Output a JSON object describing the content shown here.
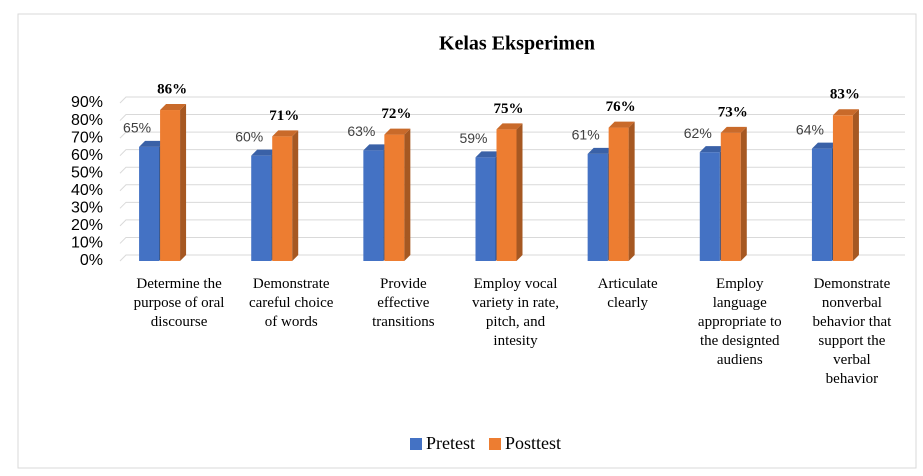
{
  "chart_data": {
    "type": "bar3d",
    "title": "Kelas Eksperimen",
    "categories": [
      "Determine the purpose of oral discourse",
      "Demonstrate careful choice of words",
      "Provide effective transitions",
      "Employ vocal variety in rate, pitch, and intesity",
      "Articulate clearly",
      "Employ language appropriate to the designted audiens",
      "Demonstrate nonverbal behavior that support the verbal behavior"
    ],
    "series": [
      {
        "name": "Pretest",
        "color": "#4472c4",
        "values": [
          65,
          60,
          63,
          59,
          61,
          62,
          64
        ],
        "value_labels": [
          "65%",
          "60%",
          "63%",
          "59%",
          "61%",
          "62%",
          "64%"
        ]
      },
      {
        "name": "Posttest",
        "color": "#ed7d31",
        "values": [
          86,
          71,
          72,
          75,
          76,
          73,
          83
        ],
        "value_labels": [
          "86%",
          "71%",
          "72%",
          "75%",
          "76%",
          "73%",
          "83%"
        ]
      }
    ],
    "ylim": [
      0,
      90
    ],
    "yticks": [
      {
        "value": 0,
        "label": "0%"
      },
      {
        "value": 10,
        "label": "10%"
      },
      {
        "value": 20,
        "label": "20%"
      },
      {
        "value": 30,
        "label": "30%"
      },
      {
        "value": 40,
        "label": "40%"
      },
      {
        "value": 50,
        "label": "50%"
      },
      {
        "value": 60,
        "label": "60%"
      },
      {
        "value": 70,
        "label": "70%"
      },
      {
        "value": 80,
        "label": "80%"
      },
      {
        "value": 90,
        "label": "90%"
      }
    ],
    "grid": true,
    "legend": "bottom"
  }
}
